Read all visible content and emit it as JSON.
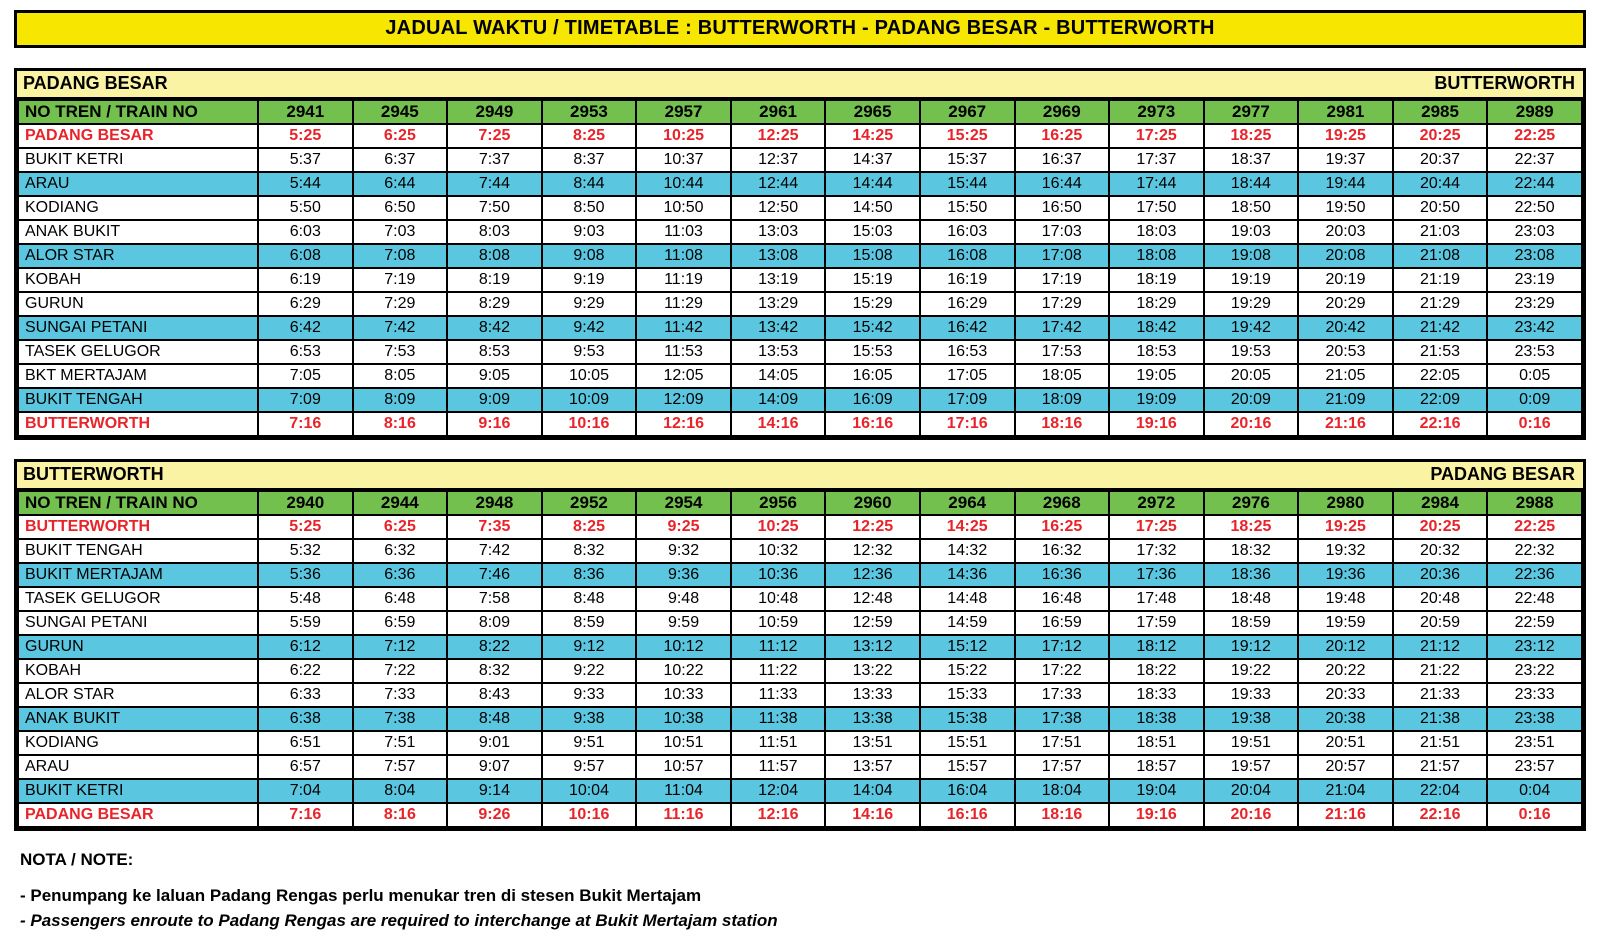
{
  "title": "JADUAL WAKTU / TIMETABLE : BUTTERWORTH - PADANG BESAR - BUTTERWORTH",
  "colors": {
    "title_bg": "#F7E600",
    "section_bg": "#FAF3A4",
    "header_bg": "#74C04E",
    "row_highlight_bg": "#5BC6E0",
    "terminal_text": "#E8232A",
    "grid_border": "#000000"
  },
  "tables": [
    {
      "origin_label": "PADANG BESAR",
      "destination_label": "BUTTERWORTH",
      "train_no_header": "NO TREN / TRAIN NO",
      "train_numbers": [
        "2941",
        "2945",
        "2949",
        "2953",
        "2957",
        "2961",
        "2965",
        "2967",
        "2969",
        "2973",
        "2977",
        "2981",
        "2985",
        "2989"
      ],
      "rows": [
        {
          "station": "PADANG BESAR",
          "style": "terminal",
          "times": [
            "5:25",
            "6:25",
            "7:25",
            "8:25",
            "10:25",
            "12:25",
            "14:25",
            "15:25",
            "16:25",
            "17:25",
            "18:25",
            "19:25",
            "20:25",
            "22:25"
          ]
        },
        {
          "station": "BUKIT KETRI",
          "style": "plain",
          "times": [
            "5:37",
            "6:37",
            "7:37",
            "8:37",
            "10:37",
            "12:37",
            "14:37",
            "15:37",
            "16:37",
            "17:37",
            "18:37",
            "19:37",
            "20:37",
            "22:37"
          ]
        },
        {
          "station": "ARAU",
          "style": "highlight",
          "times": [
            "5:44",
            "6:44",
            "7:44",
            "8:44",
            "10:44",
            "12:44",
            "14:44",
            "15:44",
            "16:44",
            "17:44",
            "18:44",
            "19:44",
            "20:44",
            "22:44"
          ]
        },
        {
          "station": "KODIANG",
          "style": "plain",
          "times": [
            "5:50",
            "6:50",
            "7:50",
            "8:50",
            "10:50",
            "12:50",
            "14:50",
            "15:50",
            "16:50",
            "17:50",
            "18:50",
            "19:50",
            "20:50",
            "22:50"
          ]
        },
        {
          "station": "ANAK BUKIT",
          "style": "plain",
          "times": [
            "6:03",
            "7:03",
            "8:03",
            "9:03",
            "11:03",
            "13:03",
            "15:03",
            "16:03",
            "17:03",
            "18:03",
            "19:03",
            "20:03",
            "21:03",
            "23:03"
          ]
        },
        {
          "station": "ALOR STAR",
          "style": "highlight",
          "times": [
            "6:08",
            "7:08",
            "8:08",
            "9:08",
            "11:08",
            "13:08",
            "15:08",
            "16:08",
            "17:08",
            "18:08",
            "19:08",
            "20:08",
            "21:08",
            "23:08"
          ]
        },
        {
          "station": "KOBAH",
          "style": "plain",
          "times": [
            "6:19",
            "7:19",
            "8:19",
            "9:19",
            "11:19",
            "13:19",
            "15:19",
            "16:19",
            "17:19",
            "18:19",
            "19:19",
            "20:19",
            "21:19",
            "23:19"
          ]
        },
        {
          "station": "GURUN",
          "style": "plain",
          "times": [
            "6:29",
            "7:29",
            "8:29",
            "9:29",
            "11:29",
            "13:29",
            "15:29",
            "16:29",
            "17:29",
            "18:29",
            "19:29",
            "20:29",
            "21:29",
            "23:29"
          ]
        },
        {
          "station": "SUNGAI PETANI",
          "style": "highlight",
          "times": [
            "6:42",
            "7:42",
            "8:42",
            "9:42",
            "11:42",
            "13:42",
            "15:42",
            "16:42",
            "17:42",
            "18:42",
            "19:42",
            "20:42",
            "21:42",
            "23:42"
          ]
        },
        {
          "station": "TASEK GELUGOR",
          "style": "plain",
          "times": [
            "6:53",
            "7:53",
            "8:53",
            "9:53",
            "11:53",
            "13:53",
            "15:53",
            "16:53",
            "17:53",
            "18:53",
            "19:53",
            "20:53",
            "21:53",
            "23:53"
          ]
        },
        {
          "station": "BKT MERTAJAM",
          "style": "plain",
          "times": [
            "7:05",
            "8:05",
            "9:05",
            "10:05",
            "12:05",
            "14:05",
            "16:05",
            "17:05",
            "18:05",
            "19:05",
            "20:05",
            "21:05",
            "22:05",
            "0:05"
          ]
        },
        {
          "station": "BUKIT TENGAH",
          "style": "highlight",
          "times": [
            "7:09",
            "8:09",
            "9:09",
            "10:09",
            "12:09",
            "14:09",
            "16:09",
            "17:09",
            "18:09",
            "19:09",
            "20:09",
            "21:09",
            "22:09",
            "0:09"
          ]
        },
        {
          "station": "BUTTERWORTH",
          "style": "terminal",
          "times": [
            "7:16",
            "8:16",
            "9:16",
            "10:16",
            "12:16",
            "14:16",
            "16:16",
            "17:16",
            "18:16",
            "19:16",
            "20:16",
            "21:16",
            "22:16",
            "0:16"
          ]
        }
      ]
    },
    {
      "origin_label": "BUTTERWORTH",
      "destination_label": "PADANG BESAR",
      "train_no_header": "NO TREN / TRAIN NO",
      "train_numbers": [
        "2940",
        "2944",
        "2948",
        "2952",
        "2954",
        "2956",
        "2960",
        "2964",
        "2968",
        "2972",
        "2976",
        "2980",
        "2984",
        "2988"
      ],
      "rows": [
        {
          "station": "BUTTERWORTH",
          "style": "terminal",
          "times": [
            "5:25",
            "6:25",
            "7:35",
            "8:25",
            "9:25",
            "10:25",
            "12:25",
            "14:25",
            "16:25",
            "17:25",
            "18:25",
            "19:25",
            "20:25",
            "22:25"
          ]
        },
        {
          "station": "BUKIT TENGAH",
          "style": "plain",
          "times": [
            "5:32",
            "6:32",
            "7:42",
            "8:32",
            "9:32",
            "10:32",
            "12:32",
            "14:32",
            "16:32",
            "17:32",
            "18:32",
            "19:32",
            "20:32",
            "22:32"
          ]
        },
        {
          "station": "BUKIT MERTAJAM",
          "style": "highlight",
          "times": [
            "5:36",
            "6:36",
            "7:46",
            "8:36",
            "9:36",
            "10:36",
            "12:36",
            "14:36",
            "16:36",
            "17:36",
            "18:36",
            "19:36",
            "20:36",
            "22:36"
          ]
        },
        {
          "station": "TASEK GELUGOR",
          "style": "plain",
          "times": [
            "5:48",
            "6:48",
            "7:58",
            "8:48",
            "9:48",
            "10:48",
            "12:48",
            "14:48",
            "16:48",
            "17:48",
            "18:48",
            "19:48",
            "20:48",
            "22:48"
          ]
        },
        {
          "station": "SUNGAI PETANI",
          "style": "plain",
          "times": [
            "5:59",
            "6:59",
            "8:09",
            "8:59",
            "9:59",
            "10:59",
            "12:59",
            "14:59",
            "16:59",
            "17:59",
            "18:59",
            "19:59",
            "20:59",
            "22:59"
          ]
        },
        {
          "station": "GURUN",
          "style": "highlight",
          "times": [
            "6:12",
            "7:12",
            "8:22",
            "9:12",
            "10:12",
            "11:12",
            "13:12",
            "15:12",
            "17:12",
            "18:12",
            "19:12",
            "20:12",
            "21:12",
            "23:12"
          ]
        },
        {
          "station": "KOBAH",
          "style": "plain",
          "times": [
            "6:22",
            "7:22",
            "8:32",
            "9:22",
            "10:22",
            "11:22",
            "13:22",
            "15:22",
            "17:22",
            "18:22",
            "19:22",
            "20:22",
            "21:22",
            "23:22"
          ]
        },
        {
          "station": "ALOR STAR",
          "style": "plain",
          "times": [
            "6:33",
            "7:33",
            "8:43",
            "9:33",
            "10:33",
            "11:33",
            "13:33",
            "15:33",
            "17:33",
            "18:33",
            "19:33",
            "20:33",
            "21:33",
            "23:33"
          ]
        },
        {
          "station": "ANAK BUKIT",
          "style": "highlight",
          "times": [
            "6:38",
            "7:38",
            "8:48",
            "9:38",
            "10:38",
            "11:38",
            "13:38",
            "15:38",
            "17:38",
            "18:38",
            "19:38",
            "20:38",
            "21:38",
            "23:38"
          ]
        },
        {
          "station": "KODIANG",
          "style": "plain",
          "times": [
            "6:51",
            "7:51",
            "9:01",
            "9:51",
            "10:51",
            "11:51",
            "13:51",
            "15:51",
            "17:51",
            "18:51",
            "19:51",
            "20:51",
            "21:51",
            "23:51"
          ]
        },
        {
          "station": "ARAU",
          "style": "plain",
          "times": [
            "6:57",
            "7:57",
            "9:07",
            "9:57",
            "10:57",
            "11:57",
            "13:57",
            "15:57",
            "17:57",
            "18:57",
            "19:57",
            "20:57",
            "21:57",
            "23:57"
          ]
        },
        {
          "station": "BUKIT KETRI",
          "style": "highlight",
          "times": [
            "7:04",
            "8:04",
            "9:14",
            "10:04",
            "11:04",
            "12:04",
            "14:04",
            "16:04",
            "18:04",
            "19:04",
            "20:04",
            "21:04",
            "22:04",
            "0:04"
          ]
        },
        {
          "station": "PADANG BESAR",
          "style": "terminal",
          "times": [
            "7:16",
            "8:16",
            "9:26",
            "10:16",
            "11:16",
            "12:16",
            "14:16",
            "16:16",
            "18:16",
            "19:16",
            "20:16",
            "21:16",
            "22:16",
            "0:16"
          ]
        }
      ]
    }
  ],
  "notes": {
    "heading": "NOTA / NOTE:",
    "lines": [
      "- Penumpang ke laluan Padang Rengas perlu menukar tren di stesen Bukit Mertajam",
      "- Passengers enroute to Padang Rengas are required to interchange at Bukit Mertajam station"
    ]
  }
}
